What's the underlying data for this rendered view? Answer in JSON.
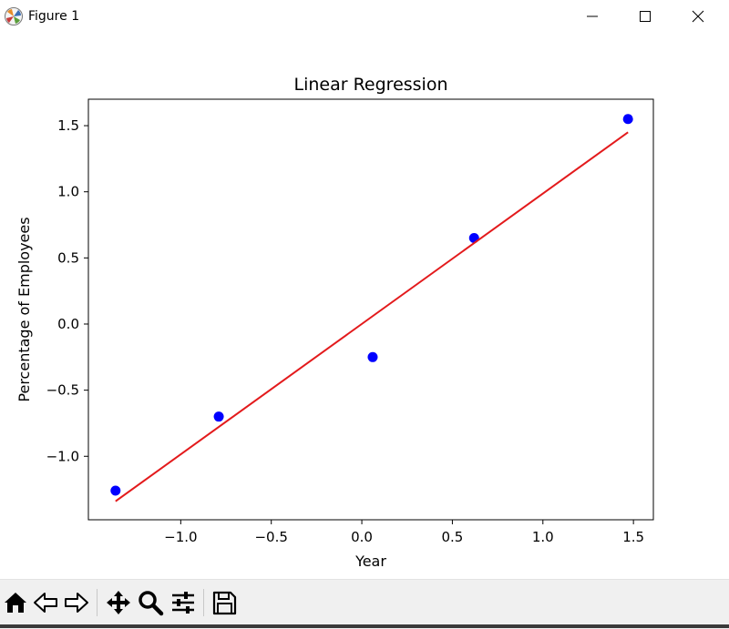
{
  "window": {
    "title": "Figure 1",
    "icon": "matplotlib-logo-icon",
    "controls": [
      "minimize-icon",
      "maximize-icon",
      "close-icon"
    ]
  },
  "toolbar": {
    "buttons": [
      "home-icon",
      "back-arrow-icon",
      "forward-arrow-icon",
      "pan-icon",
      "zoom-icon",
      "configure-subplots-icon",
      "save-icon"
    ]
  },
  "chart_data": {
    "type": "scatter",
    "title": "Linear Regression",
    "xlabel": "Year",
    "ylabel": "Percentage of Employees",
    "xlim": [
      -1.51,
      1.61
    ],
    "ylim": [
      -1.48,
      1.7
    ],
    "x_ticks": [
      -1.0,
      -0.5,
      0.0,
      0.5,
      1.0,
      1.5
    ],
    "x_tick_labels": [
      "−1.0",
      "−0.5",
      "0.0",
      "0.5",
      "1.0",
      "1.5"
    ],
    "y_ticks": [
      -1.0,
      -0.5,
      0.0,
      0.5,
      1.0,
      1.5
    ],
    "y_tick_labels": [
      "−1.0",
      "−0.5",
      "0.0",
      "0.5",
      "1.0",
      "1.5"
    ],
    "grid": false,
    "series": [
      {
        "type": "scatter",
        "color": "#0000ff",
        "x": [
          -1.36,
          -0.79,
          0.06,
          0.62,
          1.47
        ],
        "y": [
          -1.26,
          -0.7,
          -0.25,
          0.65,
          1.55
        ]
      },
      {
        "type": "line",
        "color": "#e31a1c",
        "x": [
          -1.36,
          1.47
        ],
        "y": [
          -1.34,
          1.45
        ]
      }
    ]
  }
}
